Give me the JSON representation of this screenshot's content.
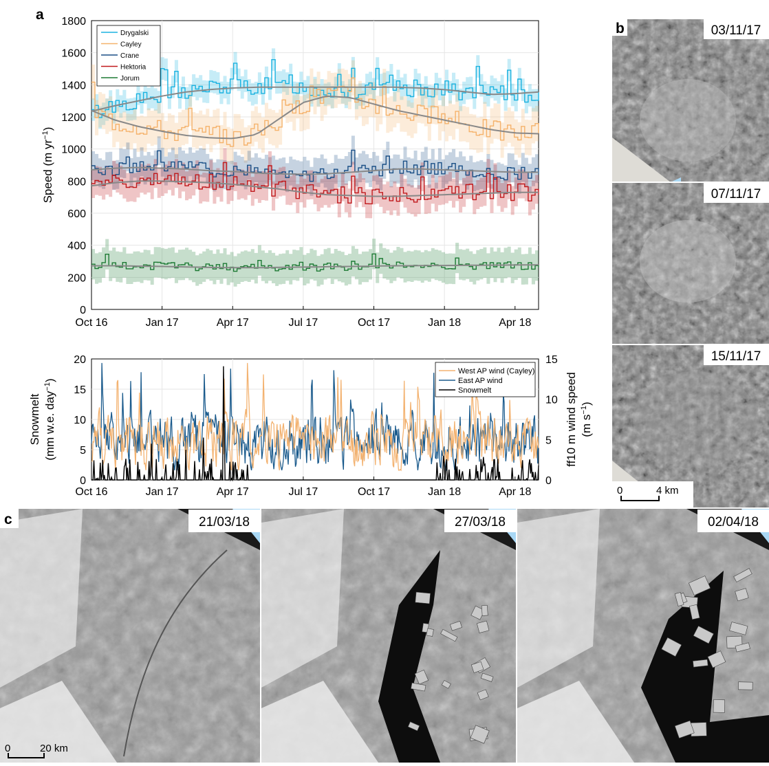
{
  "panels": {
    "a": "a",
    "b": "b",
    "c": "c"
  },
  "colors": {
    "Drygalski": "#1ab2e0",
    "Cayley": "#f5b26b",
    "Crane": "#1a4f86",
    "Hektoria": "#c0181b",
    "Jorum": "#1d7a34",
    "trend": "#888888",
    "wind_west": "#f3b270",
    "wind_east": "#1a5a8c",
    "snowmelt": "#000000",
    "sea": "#a9d8f5"
  },
  "chart_data": [
    {
      "type": "line",
      "title": "",
      "ylabel_main": "Speed (m yr",
      "ylabel_sup": "−1",
      "ylabel_close": ")",
      "ylim": [
        0,
        1800
      ],
      "yticks": [
        "0",
        "200",
        "400",
        "600",
        "800",
        "1000",
        "1200",
        "1400",
        "1600",
        "1800"
      ],
      "xticks": [
        "Oct 16",
        "Jan 17",
        "Apr 17",
        "Jul 17",
        "Oct 17",
        "Jan 18",
        "Apr 18"
      ],
      "xrange_months": [
        0,
        19
      ],
      "grid": true,
      "legend_position": "top-left",
      "series": [
        {
          "name": "Drygalski",
          "base": [
            1220,
            1280,
            1300,
            1330,
            1360,
            1380,
            1390,
            1390,
            1390,
            1380,
            1370,
            1360,
            1360,
            1370,
            1380,
            1370,
            1350,
            1340,
            1340,
            1350
          ],
          "trend": [
            1235,
            1270,
            1300,
            1330,
            1355,
            1370,
            1380,
            1385,
            1385,
            1385,
            1385,
            1385,
            1385,
            1385,
            1380,
            1370,
            1355,
            1340,
            1345,
            1355
          ],
          "band": 70,
          "noise": 55,
          "amp": 1.0
        },
        {
          "name": "Cayley",
          "base": [
            1240,
            1170,
            1150,
            1120,
            1100,
            1080,
            1070,
            1100,
            1190,
            1290,
            1350,
            1330,
            1280,
            1240,
            1220,
            1190,
            1150,
            1120,
            1100,
            1100
          ],
          "trend": [
            1240,
            1180,
            1140,
            1110,
            1085,
            1070,
            1065,
            1090,
            1190,
            1290,
            1330,
            1320,
            1280,
            1240,
            1210,
            1180,
            1150,
            1120,
            1100,
            1095
          ],
          "band": 110,
          "noise": 65,
          "amp": 1.0
        },
        {
          "name": "Crane",
          "base": [
            870,
            880,
            890,
            880,
            880,
            870,
            860,
            860,
            850,
            840,
            850,
            860,
            870,
            880,
            880,
            870,
            860,
            850,
            850,
            850
          ],
          "trend": [
            870,
            880,
            885,
            880,
            875,
            865,
            860,
            850,
            845,
            842,
            845,
            855,
            865,
            875,
            875,
            870,
            865,
            860,
            855,
            855
          ],
          "band": 90,
          "noise": 45,
          "amp": 1.0
        },
        {
          "name": "Hektoria",
          "base": [
            750,
            790,
            810,
            810,
            800,
            790,
            780,
            770,
            750,
            730,
            720,
            715,
            710,
            710,
            715,
            720,
            725,
            730,
            730,
            730
          ],
          "trend": [
            770,
            790,
            800,
            800,
            795,
            790,
            780,
            765,
            750,
            730,
            715,
            710,
            705,
            705,
            710,
            715,
            720,
            725,
            730,
            730
          ],
          "band": 90,
          "noise": 55,
          "amp": 1.0
        },
        {
          "name": "Jorum",
          "base": [
            265,
            270,
            270,
            270,
            268,
            265,
            262,
            262,
            262,
            262,
            265,
            268,
            272,
            275,
            278,
            275,
            272,
            272,
            272,
            272
          ],
          "trend": [
            272,
            272,
            270,
            268,
            265,
            262,
            260,
            260,
            262,
            264,
            266,
            268,
            270,
            272,
            273,
            274,
            275,
            276,
            277,
            278
          ],
          "band": 95,
          "noise": 25,
          "amp": 1.0
        }
      ]
    },
    {
      "type": "line",
      "title": "",
      "ylabel_left_line1": "Snowmelt",
      "ylabel_left_line2_main": "(mm w.e. day",
      "ylabel_left_line2_sup": "−1",
      "ylabel_left_line2_close": ")",
      "ylabel_right_line1": "ff10 m wind speed",
      "ylabel_right_line2_main": "(m s",
      "ylabel_right_line2_sup": "−1",
      "ylabel_right_line2_close": ")",
      "ylim_left": [
        0,
        20
      ],
      "ylim_right": [
        0,
        15
      ],
      "yticks_left": [
        "0",
        "5",
        "10",
        "15",
        "20"
      ],
      "yticks_right": [
        "0",
        "5",
        "10",
        "15"
      ],
      "xticks": [
        "Oct 16",
        "Jan 17",
        "Apr 17",
        "Jul 17",
        "Oct 17",
        "Jan 18",
        "Apr 18"
      ],
      "grid": true,
      "legend_position": "top-right",
      "series": [
        {
          "name": "West AP wind (Cayley)",
          "axis": "right",
          "mean": 4.8
        },
        {
          "name": "East AP wind",
          "axis": "right",
          "mean": 4.6
        },
        {
          "name": "Snowmelt",
          "axis": "left",
          "mean": 0.5
        }
      ]
    }
  ],
  "panel_b": {
    "dates": [
      "03/11/17",
      "07/11/17",
      "15/11/17"
    ],
    "scale_start": "0",
    "scale_end": "4 km"
  },
  "panel_c": {
    "dates": [
      "21/03/18",
      "27/03/18",
      "02/04/18"
    ],
    "scale_start": "0",
    "scale_end": "20 km"
  }
}
